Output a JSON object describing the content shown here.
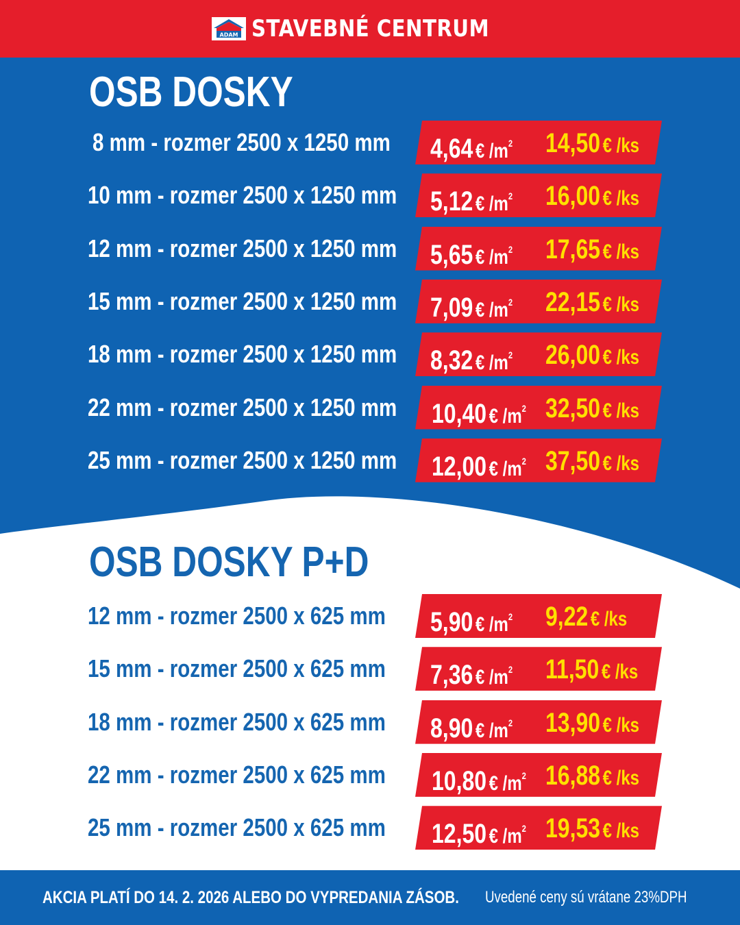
{
  "brand": {
    "name": "STAVEBNÉ CENTRUM",
    "logo_text": "ADAM"
  },
  "colors": {
    "red": "#e51e2b",
    "blue": "#0f63b2",
    "yellow": "#ffe000",
    "white": "#ffffff"
  },
  "osb": {
    "title": "OSB DOSKY",
    "rows": [
      {
        "label": "8 mm - rozmer 2500 x 1250 mm",
        "price_m2": "4,64",
        "price_ks": "14,50"
      },
      {
        "label": "10 mm - rozmer 2500 x 1250 mm",
        "price_m2": "5,12",
        "price_ks": "16,00"
      },
      {
        "label": "12 mm - rozmer 2500 x 1250 mm",
        "price_m2": "5,65",
        "price_ks": "17,65"
      },
      {
        "label": "15 mm - rozmer 2500 x 1250 mm",
        "price_m2": "7,09",
        "price_ks": "22,15"
      },
      {
        "label": "18 mm - rozmer 2500 x 1250 mm",
        "price_m2": "8,32",
        "price_ks": "26,00"
      },
      {
        "label": "22 mm - rozmer 2500 x 1250 mm",
        "price_m2": "10,40",
        "price_ks": "32,50"
      },
      {
        "label": "25 mm - rozmer 2500 x 1250 mm",
        "price_m2": "12,00",
        "price_ks": "37,50"
      }
    ]
  },
  "osb_pd": {
    "title": "OSB DOSKY P+D",
    "rows": [
      {
        "label": "12 mm - rozmer 2500 x 625 mm",
        "price_m2": "5,90",
        "price_ks": "9,22"
      },
      {
        "label": "15 mm - rozmer 2500 x 625 mm",
        "price_m2": "7,36",
        "price_ks": "11,50"
      },
      {
        "label": "18 mm - rozmer 2500 x 625 mm",
        "price_m2": "8,90",
        "price_ks": "13,90"
      },
      {
        "label": "22 mm - rozmer 2500 x 625 mm",
        "price_m2": "10,80",
        "price_ks": "16,88"
      },
      {
        "label": "25 mm - rozmer 2500 x 625 mm",
        "price_m2": "12,50",
        "price_ks": "19,53"
      }
    ]
  },
  "units": {
    "per_m2": "€ /m",
    "per_m2_exp": "2",
    "per_ks": "€ /ks"
  },
  "footer": {
    "promo": "AKCIA PLATÍ DO 14. 2. 2026 ALEBO DO VYPREDANIA ZÁSOB.",
    "vat_note": "Uvedené ceny sú vrátane 23%DPH"
  }
}
